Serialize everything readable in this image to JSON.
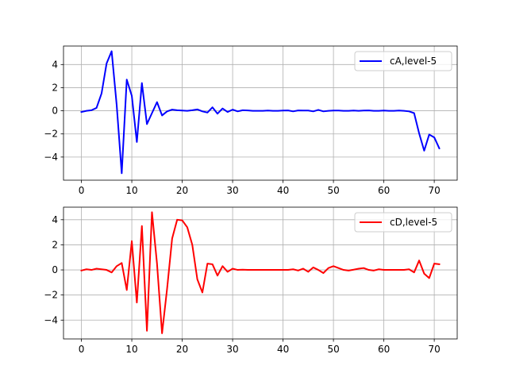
{
  "chart_data": [
    {
      "type": "line",
      "title": "",
      "xlabel": "",
      "ylabel": "",
      "xlim": [
        -3.55,
        74.55
      ],
      "ylim": [
        -6.0,
        5.6
      ],
      "xticks": [
        0,
        10,
        20,
        30,
        40,
        50,
        60,
        70
      ],
      "yticks": [
        -4,
        -2,
        0,
        2,
        4
      ],
      "grid": true,
      "legend_position": "upper right",
      "series": [
        {
          "name": "cA,level-5",
          "color": "#0000ff",
          "x": [
            0,
            1,
            2,
            3,
            4,
            5,
            6,
            7,
            8,
            9,
            10,
            11,
            12,
            13,
            14,
            15,
            16,
            17,
            18,
            19,
            20,
            21,
            22,
            23,
            24,
            25,
            26,
            27,
            28,
            29,
            30,
            31,
            32,
            33,
            34,
            35,
            36,
            37,
            38,
            39,
            40,
            41,
            42,
            43,
            44,
            45,
            46,
            47,
            48,
            49,
            50,
            51,
            52,
            53,
            54,
            55,
            56,
            57,
            58,
            59,
            60,
            61,
            62,
            63,
            64,
            65,
            66,
            67,
            68,
            69,
            70,
            71
          ],
          "values": [
            -0.1,
            0.0,
            0.05,
            0.25,
            1.5,
            4.1,
            5.15,
            0.5,
            -5.4,
            2.7,
            1.3,
            -2.7,
            2.4,
            -1.15,
            -0.2,
            0.75,
            -0.4,
            -0.05,
            0.1,
            0.05,
            0.02,
            0.0,
            0.05,
            0.12,
            -0.05,
            -0.15,
            0.3,
            -0.25,
            0.2,
            -0.1,
            0.1,
            -0.05,
            0.05,
            0.03,
            0.0,
            0.0,
            0.0,
            0.02,
            0.0,
            0.0,
            0.02,
            0.03,
            -0.05,
            0.03,
            0.02,
            0.02,
            -0.05,
            0.08,
            -0.05,
            0.0,
            0.02,
            0.02,
            0.0,
            0.0,
            0.02,
            0.0,
            0.02,
            0.03,
            0.0,
            0.0,
            0.02,
            0.0,
            0.0,
            0.02,
            0.0,
            -0.05,
            -0.2,
            -1.95,
            -3.45,
            -2.05,
            -2.3,
            -3.25
          ]
        }
      ]
    },
    {
      "type": "line",
      "title": "",
      "xlabel": "",
      "ylabel": "",
      "xlim": [
        -3.55,
        74.55
      ],
      "ylim": [
        -5.5,
        5.0
      ],
      "xticks": [
        0,
        10,
        20,
        30,
        40,
        50,
        60,
        70
      ],
      "yticks": [
        -4,
        -2,
        0,
        2,
        4
      ],
      "grid": true,
      "legend_position": "upper right",
      "series": [
        {
          "name": "cD,level-5",
          "color": "#ff0000",
          "x": [
            0,
            1,
            2,
            3,
            4,
            5,
            6,
            7,
            8,
            9,
            10,
            11,
            12,
            13,
            14,
            15,
            16,
            17,
            18,
            19,
            20,
            21,
            22,
            23,
            24,
            25,
            26,
            27,
            28,
            29,
            30,
            31,
            32,
            33,
            34,
            35,
            36,
            37,
            38,
            39,
            40,
            41,
            42,
            43,
            44,
            45,
            46,
            47,
            48,
            49,
            50,
            51,
            52,
            53,
            54,
            55,
            56,
            57,
            58,
            59,
            60,
            61,
            62,
            63,
            64,
            65,
            66,
            67,
            68,
            69,
            70,
            71
          ],
          "values": [
            -0.05,
            0.05,
            0.0,
            0.1,
            0.05,
            0.0,
            -0.2,
            0.3,
            0.55,
            -1.6,
            2.3,
            -2.6,
            3.5,
            -4.85,
            4.6,
            0.5,
            -5.05,
            -1.5,
            2.5,
            4.0,
            3.95,
            3.4,
            2.0,
            -0.75,
            -1.8,
            0.5,
            0.45,
            -0.45,
            0.3,
            -0.15,
            0.1,
            0.0,
            0.02,
            0.0,
            0.0,
            0.0,
            0.0,
            0.0,
            0.0,
            0.0,
            0.0,
            0.0,
            0.05,
            -0.05,
            0.1,
            -0.15,
            0.2,
            0.0,
            -0.25,
            0.15,
            0.3,
            0.15,
            0.0,
            -0.05,
            0.02,
            0.1,
            0.15,
            0.0,
            -0.05,
            0.05,
            0.0,
            0.0,
            0.0,
            0.0,
            0.0,
            0.05,
            -0.2,
            0.75,
            -0.3,
            -0.65,
            0.5,
            0.45
          ]
        }
      ]
    }
  ]
}
